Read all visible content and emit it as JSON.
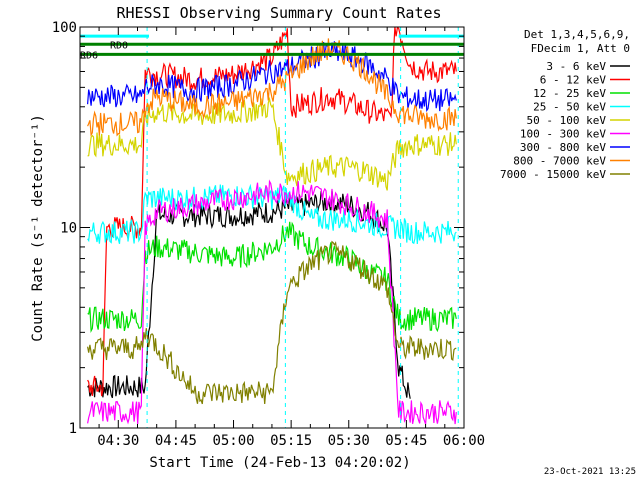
{
  "chart_data": {
    "type": "line",
    "title": "RHESSI Observing Summary Count Rates",
    "xlabel": "Start Time (24-Feb-13 04:20:02)",
    "ylabel": "Count Rate (s⁻¹ detector⁻¹)",
    "yscale": "log",
    "ylim": [
      1,
      100
    ],
    "xlim_minutes": [
      "04:20:02",
      "06:00:00"
    ],
    "x_tick_labels": [
      "04:30",
      "04:45",
      "05:00",
      "05:15",
      "05:30",
      "05:45",
      "06:00"
    ],
    "x_tick_minutes": [
      270,
      285,
      300,
      315,
      330,
      345,
      360
    ],
    "y_tick_labels": [
      "1",
      "10",
      "100"
    ],
    "y_tick_values": [
      1,
      10,
      100
    ],
    "legend_header": [
      "Det 1,3,4,5,6,9,",
      "FDecim 1, Att 0"
    ],
    "legend_position": "right",
    "timestamp": "23-Oct-2021 13:25",
    "flag_labels": [
      "RD0",
      "RD6"
    ],
    "dashed_verticals_minutes": [
      277.5,
      313.5,
      343.5,
      358.5
    ],
    "series": [
      {
        "name": "3 - 6 keV",
        "color": "#000000",
        "x": [
          262,
          270,
          277,
          280,
          290,
          300,
          310,
          314,
          320,
          325,
          330,
          335,
          340,
          343,
          346
        ],
        "y": [
          1.6,
          1.6,
          1.6,
          11.5,
          11.5,
          11.5,
          12,
          12.5,
          13,
          13.5,
          13,
          12,
          10,
          2,
          1.4
        ]
      },
      {
        "name": "6 - 12 keV",
        "color": "#ff0000",
        "x": [
          262,
          266,
          267,
          270,
          276,
          277,
          280,
          290,
          300,
          310,
          314,
          315,
          320,
          325,
          330,
          335,
          341,
          342,
          343,
          346,
          350,
          358
        ],
        "y": [
          1.6,
          1.6,
          10,
          10,
          10,
          60,
          58,
          55,
          58,
          70,
          95,
          40,
          42,
          45,
          42,
          38,
          35,
          100,
          100,
          65,
          60,
          60
        ]
      },
      {
        "name": "12 - 25 keV",
        "color": "#00e000",
        "x": [
          262,
          270,
          276,
          277,
          280,
          290,
          300,
          310,
          314,
          320,
          325,
          330,
          335,
          340,
          343,
          346,
          350,
          358
        ],
        "y": [
          3.5,
          3.5,
          3.5,
          7.5,
          8,
          7.5,
          7,
          8,
          9.5,
          8,
          7.5,
          7,
          6,
          5.5,
          3.5,
          3.5,
          3.5,
          3.5
        ]
      },
      {
        "name": "25 - 50 keV",
        "color": "#00ffff",
        "x": [
          262,
          270,
          276,
          277,
          280,
          290,
          300,
          310,
          314,
          320,
          325,
          330,
          335,
          340,
          343,
          346,
          350,
          358
        ],
        "y": [
          9.5,
          9.5,
          9.5,
          14,
          14,
          14,
          14.5,
          14,
          14.5,
          11,
          11,
          11,
          10.5,
          10,
          10,
          9.5,
          9.5,
          9.5
        ]
      },
      {
        "name": "50 - 100 keV",
        "color": "#d4d400",
        "x": [
          262,
          270,
          276,
          277,
          280,
          290,
          300,
          310,
          314,
          320,
          325,
          330,
          335,
          340,
          343,
          346,
          350,
          358
        ],
        "y": [
          26,
          26,
          26,
          35,
          38,
          36,
          37,
          40,
          18,
          19,
          20,
          20,
          19,
          17,
          25,
          26,
          26,
          26
        ]
      },
      {
        "name": "100 - 300 keV",
        "color": "#ff00ff",
        "x": [
          262,
          270,
          276,
          277,
          280,
          290,
          300,
          310,
          314,
          320,
          325,
          330,
          335,
          340,
          343,
          346,
          350,
          358
        ],
        "y": [
          1.2,
          1.2,
          1.2,
          10,
          12,
          13,
          14,
          15,
          15,
          15,
          14,
          13,
          12,
          11,
          1.2,
          1.2,
          1.2,
          1.2
        ]
      },
      {
        "name": "300 - 800 keV",
        "color": "#0000ff",
        "x": [
          262,
          270,
          276,
          277,
          280,
          290,
          300,
          310,
          314,
          320,
          325,
          330,
          335,
          340,
          343,
          346,
          350,
          358
        ],
        "y": [
          45,
          45,
          45,
          50,
          52,
          48,
          52,
          60,
          62,
          70,
          75,
          72,
          65,
          55,
          45,
          44,
          43,
          43
        ]
      },
      {
        "name": "800 - 7000 keV",
        "color": "#ff8000",
        "x": [
          262,
          270,
          276,
          277,
          280,
          290,
          300,
          310,
          314,
          320,
          325,
          330,
          335,
          340,
          343,
          346,
          350,
          358
        ],
        "y": [
          33,
          33,
          33,
          40,
          45,
          40,
          42,
          48,
          55,
          70,
          78,
          72,
          60,
          45,
          38,
          36,
          35,
          35
        ]
      },
      {
        "name": "7000 - 15000 keV",
        "color": "#808000",
        "x": [
          262,
          270,
          276,
          277,
          280,
          290,
          300,
          310,
          314,
          320,
          325,
          330,
          335,
          340,
          343,
          346,
          350,
          358
        ],
        "y": [
          2.5,
          2.5,
          2.5,
          3,
          2.6,
          1.5,
          1.5,
          1.5,
          5,
          6.5,
          7.5,
          7,
          6,
          5,
          2.5,
          2.5,
          2.5,
          2.5
        ]
      }
    ],
    "flag_lines": [
      {
        "label": "RD0",
        "color": "#008000",
        "y": 82
      },
      {
        "label": "RD6",
        "color": "#008000",
        "y": 73
      }
    ],
    "cyan_flag": {
      "color": "#00ffff",
      "y": 90
    }
  }
}
